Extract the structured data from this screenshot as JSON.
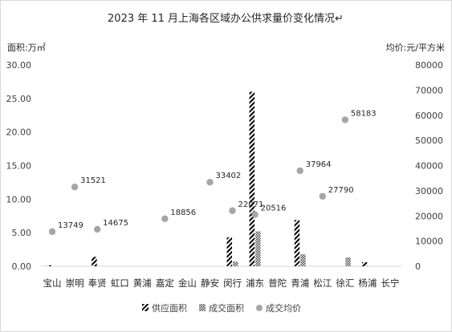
{
  "chart_data": {
    "type": "bar",
    "title": "2023 年 11 月上海各区域办公供求量价变化情况↵",
    "ylabel_left": "面积:万㎡",
    "ylabel_right": "均价:元/平方米",
    "ylim_left": [
      0,
      30
    ],
    "ylim_right": [
      0,
      80000
    ],
    "yticks_left": [
      "0.00",
      "5.00",
      "10.00",
      "15.00",
      "20.00",
      "25.00",
      "30.00"
    ],
    "yticks_right": [
      "0",
      "10000",
      "20000",
      "30000",
      "40000",
      "50000",
      "60000",
      "70000",
      "80000"
    ],
    "grid": false,
    "legend_position": "bottom",
    "categories": [
      "宝山",
      "崇明",
      "奉贤",
      "虹口",
      "黄浦",
      "嘉定",
      "金山",
      "静安",
      "闵行",
      "浦东",
      "普陀",
      "青浦",
      "松江",
      "徐汇",
      "杨浦",
      "长宁"
    ],
    "series": [
      {
        "name": "供应面积",
        "kind": "bar",
        "axis": "left",
        "pattern": "diagonal",
        "values": [
          0.15,
          0,
          1.4,
          0,
          0,
          0,
          0,
          0,
          4.3,
          26.0,
          0,
          6.9,
          0,
          0,
          0.6,
          0
        ]
      },
      {
        "name": "成交面积",
        "kind": "bar",
        "axis": "left",
        "pattern": "checker",
        "values": [
          0,
          0,
          0,
          0,
          0,
          0,
          0,
          0,
          0.7,
          5.2,
          0,
          1.8,
          0,
          1.3,
          0,
          0
        ]
      },
      {
        "name": "成交均价",
        "kind": "scatter",
        "axis": "right",
        "color": "#a6a6a6",
        "values": [
          13749,
          31521,
          14675,
          null,
          null,
          18856,
          null,
          33402,
          22071,
          20516,
          null,
          37964,
          27790,
          58183,
          null,
          null
        ],
        "labels": [
          "13749",
          "31521",
          "14675",
          null,
          null,
          "18856",
          null,
          "33402",
          "22071",
          "20516",
          null,
          "37964",
          "27790",
          "58183",
          null,
          null
        ]
      }
    ]
  }
}
